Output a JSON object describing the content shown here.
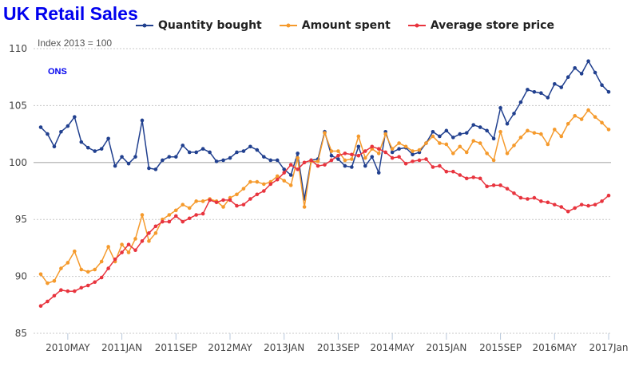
{
  "chart_data": {
    "type": "line",
    "title": "UK Retail Sales",
    "subtitle": "Index 2013 = 100",
    "source_label": "ONS",
    "xlabel": "",
    "ylabel": "",
    "x_start": "2010-01",
    "x_end": "2017-01",
    "x_frequency": "monthly",
    "xticks": [
      "2010MAY",
      "2011JAN",
      "2011SEP",
      "2012MAY",
      "2013JAN",
      "2013SEP",
      "2014MAY",
      "2015JAN",
      "2015SEP",
      "2016MAY",
      "2017Jan"
    ],
    "xtick_months": [
      "2010-05",
      "2011-01",
      "2011-09",
      "2012-05",
      "2013-01",
      "2013-09",
      "2014-05",
      "2015-01",
      "2015-09",
      "2016-05",
      "2017-01"
    ],
    "yticks": [
      85,
      90,
      95,
      100,
      105,
      110
    ],
    "ylim": [
      85,
      110
    ],
    "grid": true,
    "legend": "top",
    "series": [
      {
        "name": "Quantity bought",
        "color": "#21408f",
        "values": [
          103.1,
          102.5,
          101.4,
          102.7,
          103.2,
          104.0,
          101.8,
          101.3,
          101.0,
          101.2,
          102.1,
          99.7,
          100.5,
          99.9,
          100.5,
          103.7,
          99.5,
          99.4,
          100.2,
          100.5,
          100.5,
          101.5,
          100.9,
          100.9,
          101.2,
          100.9,
          100.1,
          100.2,
          100.4,
          100.9,
          101.0,
          101.4,
          101.1,
          100.5,
          100.2,
          100.2,
          99.4,
          98.9,
          100.8,
          96.8,
          100.2,
          100.3,
          102.7,
          100.6,
          100.3,
          99.7,
          99.6,
          101.4,
          99.7,
          100.5,
          99.1,
          102.7,
          100.9,
          101.2,
          101.3,
          100.7,
          100.9,
          101.7,
          102.7,
          102.3,
          102.8,
          102.2,
          102.5,
          102.6,
          103.3,
          103.1,
          102.8,
          102.1,
          104.8,
          103.4,
          104.3,
          105.3,
          106.4,
          106.2,
          106.1,
          105.7,
          106.9,
          106.6,
          107.5,
          108.3,
          107.8,
          108.9,
          107.9,
          106.8,
          106.2
        ]
      },
      {
        "name": "Amount spent",
        "color": "#f59a2c",
        "values": [
          90.2,
          89.4,
          89.6,
          90.7,
          91.2,
          92.2,
          90.6,
          90.4,
          90.6,
          91.3,
          92.6,
          91.3,
          92.8,
          92.1,
          93.3,
          95.4,
          93.1,
          93.8,
          95.0,
          95.4,
          95.8,
          96.3,
          96.0,
          96.6,
          96.6,
          96.8,
          96.6,
          96.1,
          96.9,
          97.2,
          97.7,
          98.3,
          98.3,
          98.1,
          98.3,
          98.8,
          98.4,
          98.0,
          100.4,
          96.1,
          100.1,
          100.1,
          102.6,
          101.0,
          101.0,
          100.2,
          100.3,
          102.3,
          100.4,
          101.2,
          100.8,
          102.5,
          101.2,
          101.7,
          101.4,
          101.0,
          101.1,
          101.7,
          102.3,
          101.7,
          101.6,
          100.8,
          101.4,
          100.9,
          101.9,
          101.7,
          100.8,
          100.2,
          102.7,
          100.8,
          101.5,
          102.2,
          102.8,
          102.6,
          102.5,
          101.6,
          102.9,
          102.3,
          103.4,
          104.1,
          103.8,
          104.6,
          104.0,
          103.5,
          102.9
        ]
      },
      {
        "name": "Average store price",
        "color": "#e8343e",
        "values": [
          87.4,
          87.8,
          88.3,
          88.8,
          88.7,
          88.7,
          89.0,
          89.2,
          89.5,
          89.9,
          90.7,
          91.5,
          92.1,
          92.8,
          92.3,
          93.1,
          93.8,
          94.4,
          94.8,
          94.8,
          95.3,
          94.8,
          95.1,
          95.4,
          95.5,
          96.7,
          96.5,
          96.7,
          96.7,
          96.2,
          96.3,
          96.8,
          97.2,
          97.5,
          98.1,
          98.5,
          99.1,
          99.8,
          99.4,
          100.0,
          100.2,
          99.7,
          99.8,
          100.2,
          100.6,
          100.8,
          100.7,
          100.6,
          101.0,
          101.4,
          101.2,
          100.9,
          100.4,
          100.5,
          99.9,
          100.1,
          100.2,
          100.3,
          99.6,
          99.7,
          99.2,
          99.2,
          98.9,
          98.6,
          98.7,
          98.6,
          97.9,
          98.0,
          98.0,
          97.7,
          97.3,
          96.9,
          96.8,
          96.9,
          96.6,
          96.5,
          96.3,
          96.1,
          95.7,
          96.0,
          96.3,
          96.2,
          96.3,
          96.6,
          97.1
        ]
      }
    ]
  }
}
